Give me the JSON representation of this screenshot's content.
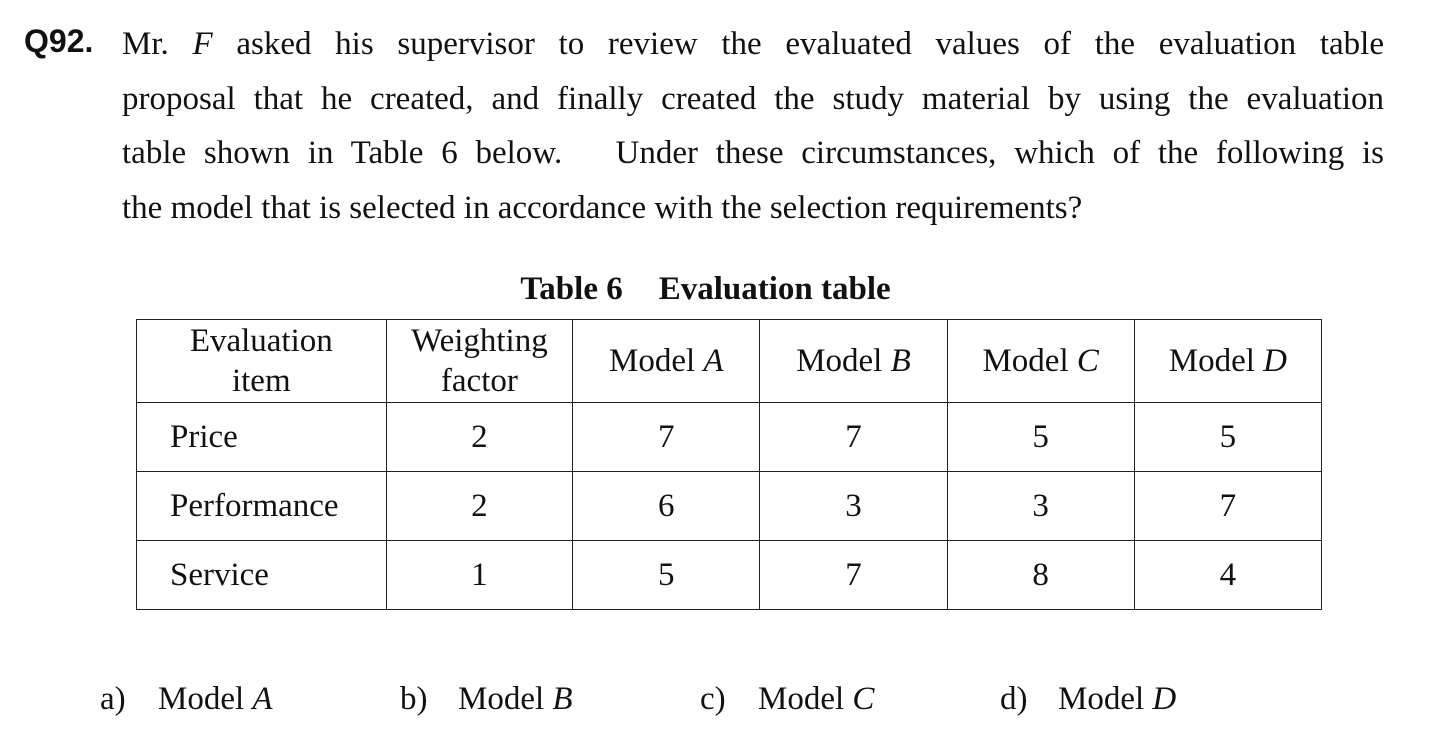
{
  "question": {
    "number": "Q92.",
    "lines": [
      "Mr. F asked his supervisor to review the evaluated values of the evaluation table",
      "proposal that he created, and finally created the study material by using the evaluation",
      "table shown in Table 6 below.   Under these circumstances, which of the following is",
      "the model that is selected in accordance with the selection requirements?"
    ]
  },
  "table": {
    "caption_number": "Table 6",
    "caption_title": "Evaluation table",
    "headers": {
      "item_line1": "Evaluation",
      "item_line2": "item",
      "weight_line1": "Weighting",
      "weight_line2": "factor",
      "model_prefix": "Model",
      "models": [
        "A",
        "B",
        "C",
        "D"
      ]
    },
    "rows": [
      {
        "item": "Price",
        "weight": "2",
        "values": [
          "7",
          "7",
          "5",
          "5"
        ]
      },
      {
        "item": "Performance",
        "weight": "2",
        "values": [
          "6",
          "3",
          "3",
          "7"
        ]
      },
      {
        "item": "Service",
        "weight": "1",
        "values": [
          "5",
          "7",
          "8",
          "4"
        ]
      }
    ]
  },
  "options": [
    {
      "letter": "a)",
      "prefix": "Model",
      "model": "A"
    },
    {
      "letter": "b)",
      "prefix": "Model",
      "model": "B"
    },
    {
      "letter": "c)",
      "prefix": "Model",
      "model": "C"
    },
    {
      "letter": "d)",
      "prefix": "Model",
      "model": "D"
    }
  ]
}
